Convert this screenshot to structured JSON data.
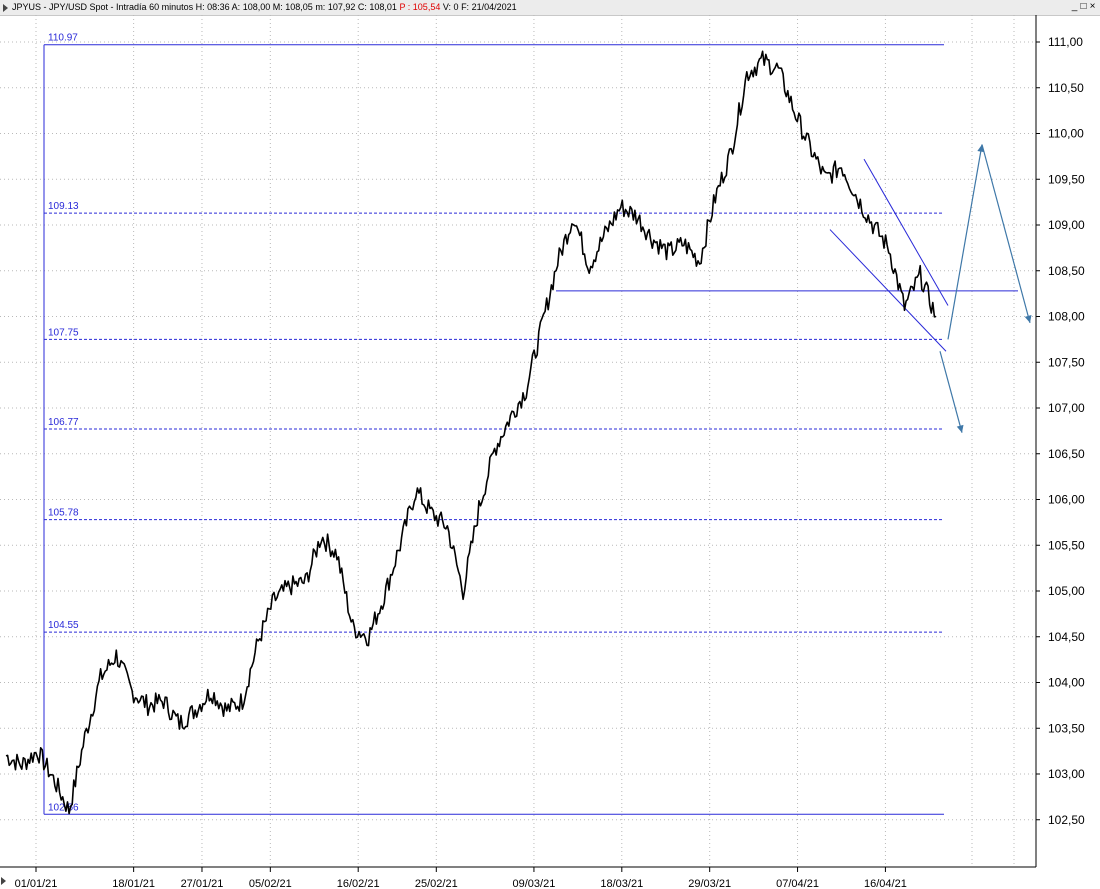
{
  "titlebar": {
    "symbol": "JPYUS",
    "name": "JPY/USD Spot",
    "interval": "Intradía 60 minutos",
    "high_label": "H:",
    "high": "08:36",
    "open_label": "A:",
    "open": "108,00",
    "max_label": "M:",
    "max": "108,05",
    "min_label": "m:",
    "min": "107,92",
    "close_label": "C:",
    "close": "108,01",
    "p_label": "P :",
    "p": "105,54",
    "volume_label": "V:",
    "volume": "0",
    "date_label": "F:",
    "date": "21/04/2021",
    "minimize_glyph": "_",
    "restore_glyph": "□",
    "close_glyph": "×"
  },
  "chart_data": {
    "type": "line",
    "ylim": [
      102.35,
      111.4
    ],
    "ytick_values": [
      102.5,
      103.0,
      103.5,
      104.0,
      104.5,
      105.0,
      105.5,
      106.0,
      106.5,
      107.0,
      107.5,
      108.0,
      108.5,
      109.0,
      109.5,
      110.0,
      110.5,
      111.0
    ],
    "ytick_labels": [
      "102,50",
      "103,00",
      "103,50",
      "104,00",
      "104,50",
      "105,00",
      "105,50",
      "106,00",
      "106,50",
      "107,00",
      "107,50",
      "108,00",
      "108,50",
      "109,00",
      "109,50",
      "110,00",
      "110,50",
      "111,00"
    ],
    "xtick_labels": [
      "01/01/21",
      "18/01/21",
      "27/01/21",
      "05/02/21",
      "16/02/21",
      "25/02/21",
      "09/03/21",
      "18/03/21",
      "29/03/21",
      "07/04/21",
      "16/04/21"
    ],
    "xtick_positions": [
      0,
      10,
      17,
      24,
      33,
      41,
      51,
      60,
      69,
      78,
      87
    ],
    "x_total": 93,
    "grid": true,
    "series": [
      {
        "values": [
          [
            0,
            103.2
          ],
          [
            1,
            103.1
          ],
          [
            2,
            103.25
          ],
          [
            3,
            102.95
          ],
          [
            4,
            102.6
          ],
          [
            5,
            103.4
          ],
          [
            6,
            104.05
          ],
          [
            7,
            104.3
          ],
          [
            8,
            103.9
          ],
          [
            9,
            103.75
          ],
          [
            10,
            103.8
          ],
          [
            11,
            103.55
          ],
          [
            12,
            103.7
          ],
          [
            13,
            103.9
          ],
          [
            14,
            103.7
          ],
          [
            15,
            103.8
          ],
          [
            16,
            104.45
          ],
          [
            17,
            104.9
          ],
          [
            18,
            105.05
          ],
          [
            19,
            105.1
          ],
          [
            20,
            105.6
          ],
          [
            21,
            105.4
          ],
          [
            22,
            104.6
          ],
          [
            23,
            104.5
          ],
          [
            24,
            104.95
          ],
          [
            25,
            105.5
          ],
          [
            26,
            106.1
          ],
          [
            27,
            105.85
          ],
          [
            28,
            105.7
          ],
          [
            29,
            105.0
          ],
          [
            30,
            105.9
          ],
          [
            31,
            106.55
          ],
          [
            32,
            106.9
          ],
          [
            33,
            107.2
          ],
          [
            34,
            107.9
          ],
          [
            35,
            108.6
          ],
          [
            36,
            109.1
          ],
          [
            37,
            108.55
          ],
          [
            38,
            108.9
          ],
          [
            39,
            109.2
          ],
          [
            40,
            109.1
          ],
          [
            41,
            108.85
          ],
          [
            42,
            108.7
          ],
          [
            43,
            108.8
          ],
          [
            44,
            108.6
          ],
          [
            45,
            109.3
          ],
          [
            46,
            109.8
          ],
          [
            47,
            110.65
          ],
          [
            48,
            110.8
          ],
          [
            49,
            110.7
          ],
          [
            50,
            110.25
          ],
          [
            51,
            109.85
          ],
          [
            52,
            109.5
          ],
          [
            53,
            109.65
          ],
          [
            54,
            109.3
          ],
          [
            55,
            109.0
          ],
          [
            56,
            108.75
          ],
          [
            57,
            108.1
          ],
          [
            58,
            108.45
          ],
          [
            59,
            108.0
          ]
        ]
      }
    ],
    "fib_levels": [
      {
        "value": 110.97,
        "label": "110.97"
      },
      {
        "value": 109.13,
        "label": "109.13"
      },
      {
        "value": 107.75,
        "label": "107.75"
      },
      {
        "value": 106.77,
        "label": "106.77"
      },
      {
        "value": 105.78,
        "label": "105.78"
      },
      {
        "value": 104.55,
        "label": "104.55"
      },
      {
        "value": 102.56,
        "label": "102.56"
      }
    ],
    "support_line_value": 108.28,
    "colors": {
      "price": "#000000",
      "fib": "#2a2ad8",
      "annotation": "#3f78a8",
      "grid": "#b9b9b9",
      "text": "#000000"
    }
  }
}
